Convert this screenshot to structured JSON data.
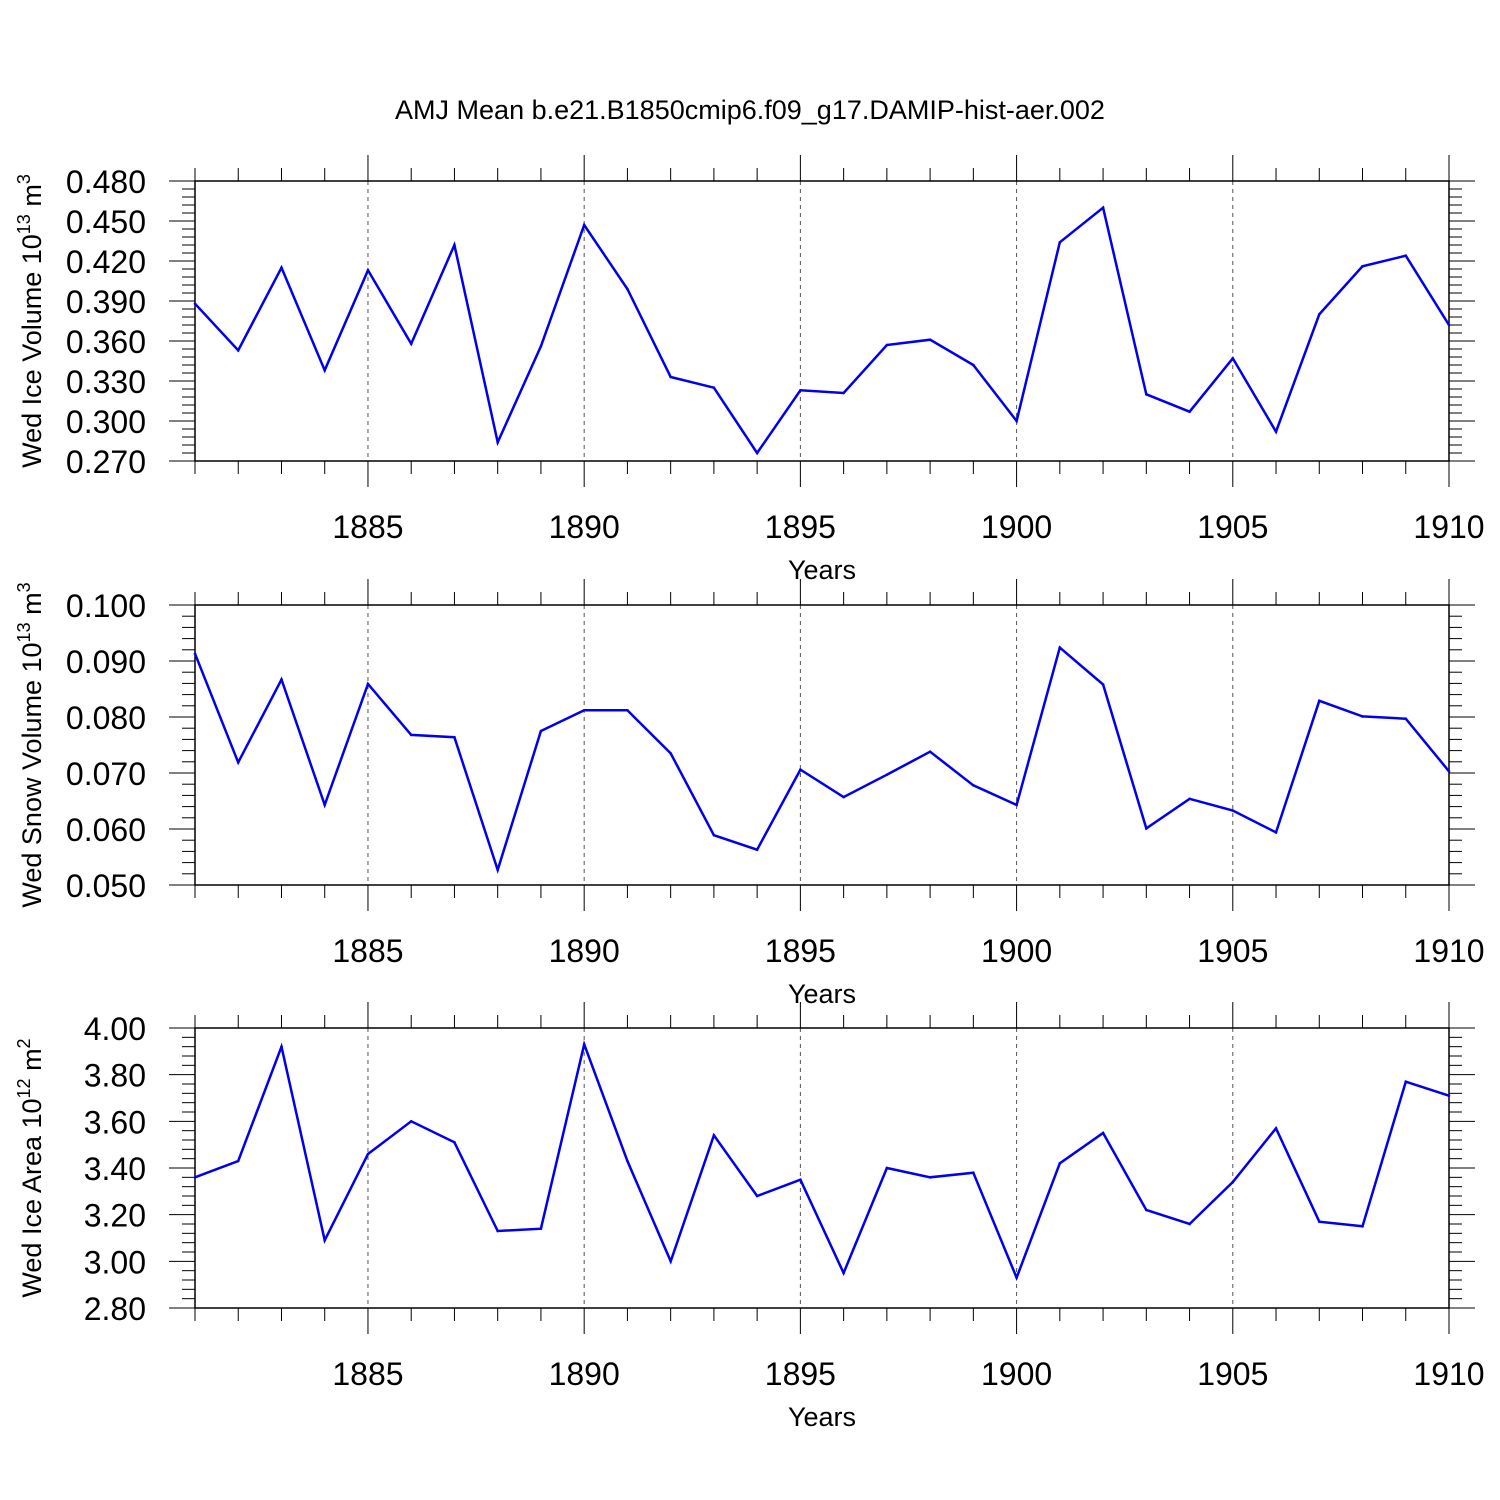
{
  "title": "AMJ Mean b.e21.B1850cmip6.f09_g17.DAMIP-hist-aer.002",
  "colors": {
    "line": "#0000ee",
    "axis": "#000000",
    "grid": "#555555"
  },
  "chart_data": [
    {
      "type": "line",
      "ylabel_main": "Wed Ice Volume 10",
      "ylabel_exp": "13",
      "ylabel_unit": " m",
      "ylabel_unit_exp": "3",
      "xlabel": "Years",
      "xlim": [
        1881,
        1910
      ],
      "ylim": [
        0.27,
        0.48
      ],
      "yticks": [
        0.27,
        0.3,
        0.33,
        0.36,
        0.39,
        0.42,
        0.45,
        0.48
      ],
      "ytick_labels": [
        "0.270",
        "0.300",
        "0.330",
        "0.360",
        "0.390",
        "0.420",
        "0.450",
        "0.480"
      ],
      "xticks": [
        1885,
        1890,
        1895,
        1900,
        1905,
        1910
      ],
      "xtick_labels": [
        "1885",
        "1890",
        "1895",
        "1900",
        "1905",
        "1910"
      ],
      "grid_x": [
        1885,
        1890,
        1895,
        1900,
        1905
      ],
      "series": [
        {
          "name": "Wed Ice Volume",
          "x": [
            1881,
            1882,
            1883,
            1884,
            1885,
            1886,
            1887,
            1888,
            1889,
            1890,
            1891,
            1892,
            1893,
            1894,
            1895,
            1896,
            1897,
            1898,
            1899,
            1900,
            1901,
            1902,
            1903,
            1904,
            1905,
            1906,
            1907,
            1908,
            1909,
            1910
          ],
          "y": [
            0.388,
            0.353,
            0.415,
            0.338,
            0.413,
            0.358,
            0.432,
            0.284,
            0.356,
            0.447,
            0.399,
            0.333,
            0.325,
            0.276,
            0.323,
            0.321,
            0.357,
            0.361,
            0.342,
            0.3,
            0.434,
            0.46,
            0.32,
            0.307,
            0.347,
            0.292,
            0.38,
            0.416,
            0.424,
            0.372
          ]
        }
      ]
    },
    {
      "type": "line",
      "ylabel_main": "Wed Snow Volume 10",
      "ylabel_exp": "13",
      "ylabel_unit": " m",
      "ylabel_unit_exp": "3",
      "xlabel": "Years",
      "xlim": [
        1881,
        1910
      ],
      "ylim": [
        0.05,
        0.1
      ],
      "yticks": [
        0.05,
        0.06,
        0.07,
        0.08,
        0.09,
        0.1
      ],
      "ytick_labels": [
        "0.050",
        "0.060",
        "0.070",
        "0.080",
        "0.090",
        "0.100"
      ],
      "xticks": [
        1885,
        1890,
        1895,
        1900,
        1905,
        1910
      ],
      "xtick_labels": [
        "1885",
        "1890",
        "1895",
        "1900",
        "1905",
        "1910"
      ],
      "grid_x": [
        1885,
        1890,
        1895,
        1900,
        1905
      ],
      "series": [
        {
          "name": "Wed Snow Volume",
          "x": [
            1881,
            1882,
            1883,
            1884,
            1885,
            1886,
            1887,
            1888,
            1889,
            1890,
            1891,
            1892,
            1893,
            1894,
            1895,
            1896,
            1897,
            1898,
            1899,
            1900,
            1901,
            1902,
            1903,
            1904,
            1905,
            1906,
            1907,
            1908,
            1909,
            1910
          ],
          "y": [
            0.0913,
            0.0719,
            0.0867,
            0.0643,
            0.0859,
            0.0768,
            0.0764,
            0.0527,
            0.0775,
            0.0812,
            0.0812,
            0.0735,
            0.0589,
            0.0563,
            0.0706,
            0.0657,
            0.0697,
            0.0738,
            0.0678,
            0.0643,
            0.0924,
            0.0858,
            0.0601,
            0.0654,
            0.0633,
            0.0594,
            0.0829,
            0.0801,
            0.0797,
            0.0703
          ]
        }
      ]
    },
    {
      "type": "line",
      "ylabel_main": "Wed Ice Area 10",
      "ylabel_exp": "12",
      "ylabel_unit": " m",
      "ylabel_unit_exp": "2",
      "xlabel": "Years",
      "xlim": [
        1881,
        1910
      ],
      "ylim": [
        2.8,
        4.0
      ],
      "yticks": [
        2.8,
        3.0,
        3.2,
        3.4,
        3.6,
        3.8,
        4.0
      ],
      "ytick_labels": [
        "2.80",
        "3.00",
        "3.20",
        "3.40",
        "3.60",
        "3.80",
        "4.00"
      ],
      "xticks": [
        1885,
        1890,
        1895,
        1900,
        1905,
        1910
      ],
      "xtick_labels": [
        "1885",
        "1890",
        "1895",
        "1900",
        "1905",
        "1910"
      ],
      "grid_x": [
        1885,
        1890,
        1895,
        1900,
        1905
      ],
      "series": [
        {
          "name": "Wed Ice Area",
          "x": [
            1881,
            1882,
            1883,
            1884,
            1885,
            1886,
            1887,
            1888,
            1889,
            1890,
            1891,
            1892,
            1893,
            1894,
            1895,
            1896,
            1897,
            1898,
            1899,
            1900,
            1901,
            1902,
            1903,
            1904,
            1905,
            1906,
            1907,
            1908,
            1909,
            1910
          ],
          "y": [
            3.36,
            3.43,
            3.92,
            3.09,
            3.46,
            3.6,
            3.51,
            3.13,
            3.14,
            3.93,
            3.43,
            3.0,
            3.54,
            3.28,
            3.35,
            2.95,
            3.4,
            3.36,
            3.38,
            2.93,
            3.42,
            3.55,
            3.22,
            3.16,
            3.34,
            3.57,
            3.17,
            3.15,
            3.77,
            3.71
          ]
        }
      ]
    }
  ]
}
